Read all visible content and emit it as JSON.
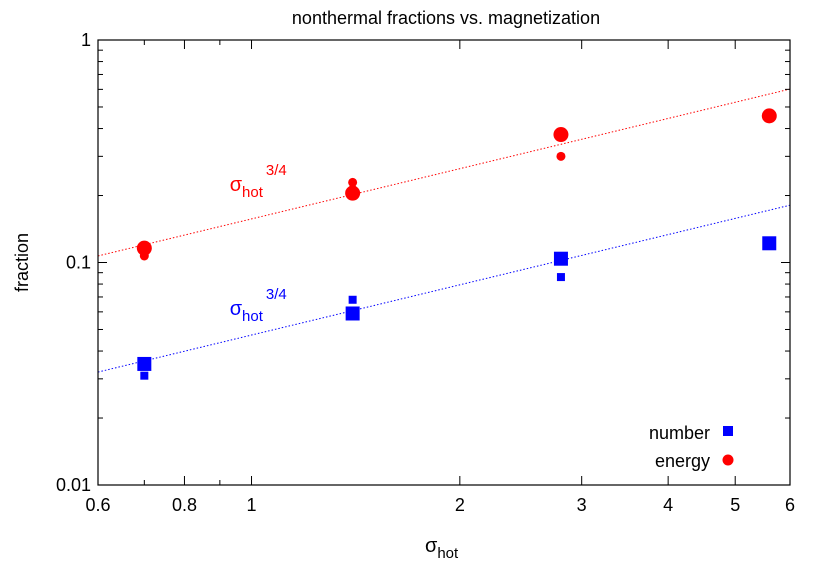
{
  "chart_data": {
    "type": "scatter",
    "title": "nonthermal fractions vs. magnetization",
    "xlabel": {
      "main": "σ",
      "sub": "hot"
    },
    "ylabel": "fraction",
    "xscale": "log",
    "yscale": "log",
    "xlim": [
      0.6,
      6
    ],
    "ylim": [
      0.01,
      1
    ],
    "x_ticks": [
      {
        "v": 0.6,
        "label": "0.6"
      },
      {
        "v": 0.8,
        "label": "0.8"
      },
      {
        "v": 1,
        "label": "1"
      },
      {
        "v": 2,
        "label": "2"
      },
      {
        "v": 3,
        "label": "3"
      },
      {
        "v": 4,
        "label": "4"
      },
      {
        "v": 5,
        "label": "5"
      },
      {
        "v": 6,
        "label": "6"
      }
    ],
    "y_ticks": [
      {
        "v": 0.01,
        "label": "0.01"
      },
      {
        "v": 0.1,
        "label": "0.1"
      },
      {
        "v": 1,
        "label": "1"
      }
    ],
    "grid": false,
    "legend": {
      "position": "bottom-right"
    },
    "colors": {
      "number": "#0000ff",
      "energy": "#ff0000",
      "axis": "#000000"
    },
    "series": [
      {
        "name": "number",
        "marker": "square",
        "points": [
          {
            "x": 0.7,
            "y": 0.035,
            "size": "large"
          },
          {
            "x": 0.7,
            "y": 0.031,
            "size": "small"
          },
          {
            "x": 1.4,
            "y": 0.059,
            "size": "large"
          },
          {
            "x": 1.4,
            "y": 0.068,
            "size": "small"
          },
          {
            "x": 2.8,
            "y": 0.104,
            "size": "large"
          },
          {
            "x": 2.8,
            "y": 0.086,
            "size": "small"
          },
          {
            "x": 5.6,
            "y": 0.122,
            "size": "large"
          }
        ]
      },
      {
        "name": "energy",
        "marker": "circle",
        "points": [
          {
            "x": 0.7,
            "y": 0.116,
            "size": "large"
          },
          {
            "x": 0.7,
            "y": 0.107,
            "size": "small"
          },
          {
            "x": 1.4,
            "y": 0.205,
            "size": "large"
          },
          {
            "x": 1.4,
            "y": 0.229,
            "size": "small"
          },
          {
            "x": 1.4,
            "y": 0.213,
            "size": "small"
          },
          {
            "x": 2.8,
            "y": 0.376,
            "size": "large"
          },
          {
            "x": 2.8,
            "y": 0.3,
            "size": "small"
          },
          {
            "x": 5.6,
            "y": 0.456,
            "size": "large"
          }
        ]
      }
    ],
    "fit_lines": [
      {
        "series": "energy",
        "coef": 0.157,
        "exponent": 0.75,
        "style": "dotted"
      },
      {
        "series": "number",
        "coef": 0.0472,
        "exponent": 0.75,
        "style": "dotted"
      }
    ],
    "annotations": [
      {
        "series": "energy",
        "main": "σ",
        "sub": "hot",
        "sup": "3/4",
        "x": 0.93,
        "y": 0.21
      },
      {
        "series": "number",
        "main": "σ",
        "sub": "hot",
        "sup": "3/4",
        "x": 0.93,
        "y": 0.058
      }
    ]
  }
}
